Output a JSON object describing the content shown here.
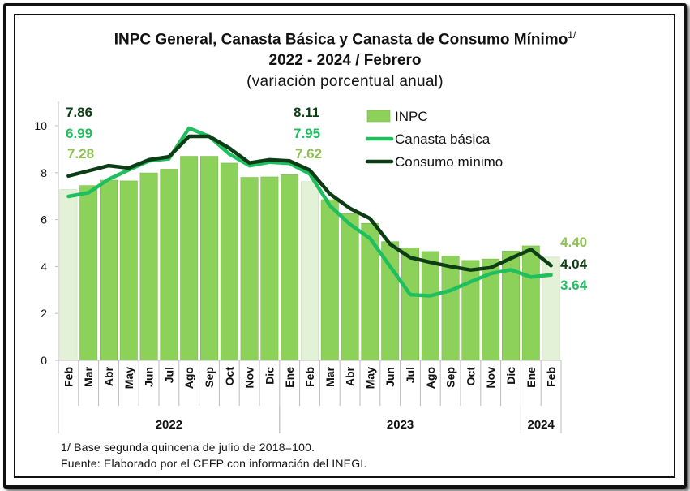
{
  "title": {
    "line1": "INPC General, Canasta Básica  y Canasta de Consumo Mínimo",
    "line1_sup": "1/",
    "line2": "2022 - 2024 / Febrero",
    "line3": "(variación porcentual anual)"
  },
  "footnotes": {
    "base": "1/ Base segunda quincena de julio de 2018=100.",
    "source": "Fuente: Elaborado por el CEFP con información  del INEGI."
  },
  "chart_data": {
    "type": "bar",
    "categories": [
      "Feb",
      "Mar",
      "Abr",
      "May",
      "Jun",
      "Jul",
      "Ago",
      "Sep",
      "Oct",
      "Nov",
      "Dic",
      "Ene",
      "Feb",
      "Mar",
      "Abr",
      "May",
      "Jun",
      "Jul",
      "Ago",
      "Sep",
      "Oct",
      "Nov",
      "Dic",
      "Ene",
      "Feb"
    ],
    "year_groups": [
      {
        "label": "2022",
        "start": 0,
        "end": 10
      },
      {
        "label": "2023",
        "start": 11,
        "end": 22
      },
      {
        "label": "2024",
        "start": 23,
        "end": 24
      }
    ],
    "ylim": [
      0,
      10
    ],
    "yticks": [
      "0",
      "2",
      "4",
      "6",
      "8",
      "10"
    ],
    "series": [
      {
        "name": "INPC",
        "kind": "bar",
        "color": "#8cd15a",
        "highlight_color": "#e3f2d6",
        "values": [
          7.28,
          7.45,
          7.68,
          7.65,
          7.99,
          8.15,
          8.7,
          8.7,
          8.41,
          7.8,
          7.82,
          7.91,
          7.62,
          6.85,
          6.25,
          5.84,
          5.06,
          4.79,
          4.64,
          4.45,
          4.26,
          4.32,
          4.66,
          4.88,
          4.4
        ],
        "highlight_indices": [
          0,
          12,
          24
        ]
      },
      {
        "name": "Canasta básica",
        "kind": "line",
        "color": "#1fbf5f",
        "values": [
          6.99,
          7.15,
          7.72,
          8.12,
          8.5,
          8.6,
          9.9,
          9.55,
          8.8,
          8.3,
          8.45,
          8.4,
          7.95,
          6.6,
          5.8,
          5.2,
          4.0,
          2.8,
          2.75,
          2.98,
          3.35,
          3.7,
          3.86,
          3.55,
          3.64
        ]
      },
      {
        "name": "Consumo mínimo",
        "kind": "line",
        "color": "#0c3d14",
        "values": [
          7.86,
          8.08,
          8.3,
          8.2,
          8.55,
          8.68,
          9.55,
          9.55,
          9.05,
          8.42,
          8.55,
          8.5,
          8.11,
          7.1,
          6.48,
          6.05,
          4.95,
          4.38,
          4.18,
          4.0,
          3.85,
          3.95,
          4.35,
          4.73,
          4.04
        ]
      }
    ],
    "labels": [
      {
        "text": "7.86",
        "color": "#0c3d14"
      },
      {
        "text": "6.99",
        "color": "#1fbf5f"
      },
      {
        "text": "7.28",
        "color": "#8cc152"
      },
      {
        "text": "8.11",
        "color": "#0c3d14"
      },
      {
        "text": "7.95",
        "color": "#1fbf5f"
      },
      {
        "text": "7.62",
        "color": "#8cc152"
      },
      {
        "text": "4.40",
        "color": "#8cc152"
      },
      {
        "text": "4.04",
        "color": "#0c3d14"
      },
      {
        "text": "3.64",
        "color": "#1fbf5f"
      }
    ],
    "legend_position": "top-right"
  }
}
